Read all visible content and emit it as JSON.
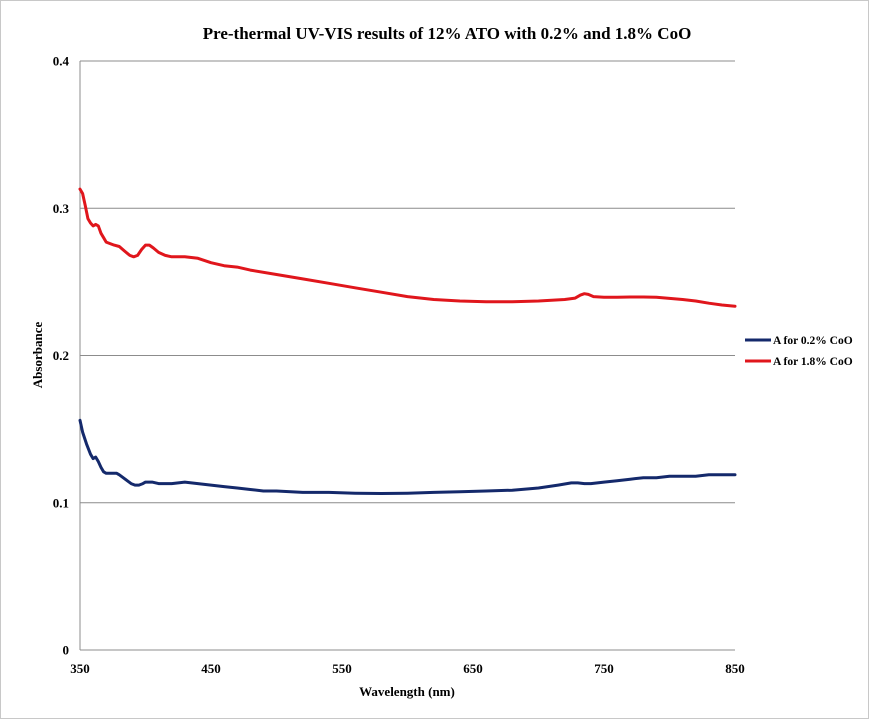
{
  "chart_data": {
    "type": "line",
    "title": "Pre-thermal UV-VIS  results of 12% ATO with 0.2% and 1.8% CoO",
    "xlabel": "Wavelength (nm)",
    "ylabel": "Absorbance",
    "xlim": [
      350,
      850
    ],
    "ylim": [
      0,
      0.4
    ],
    "x_ticks": [
      "350",
      "450",
      "550",
      "650",
      "750",
      "850"
    ],
    "y_ticks": [
      "0",
      "0.1",
      "0.2",
      "0.3",
      "0.4"
    ],
    "grid": "horizontal",
    "legend_position": "right",
    "series": [
      {
        "name": "A for 0.2% CoO",
        "color": "#14296b",
        "x": [
          350,
          352,
          355,
          358,
          360,
          362,
          364,
          366,
          368,
          370,
          372,
          375,
          378,
          380,
          383,
          386,
          389,
          392,
          395,
          398,
          400,
          405,
          410,
          420,
          430,
          440,
          450,
          460,
          470,
          480,
          490,
          500,
          520,
          540,
          560,
          580,
          600,
          620,
          640,
          660,
          680,
          700,
          715,
          725,
          730,
          735,
          740,
          750,
          760,
          770,
          780,
          790,
          800,
          810,
          820,
          830,
          840,
          850
        ],
        "y": [
          0.156,
          0.148,
          0.14,
          0.133,
          0.13,
          0.131,
          0.128,
          0.124,
          0.121,
          0.12,
          0.12,
          0.12,
          0.12,
          0.119,
          0.117,
          0.115,
          0.113,
          0.112,
          0.112,
          0.113,
          0.114,
          0.114,
          0.113,
          0.113,
          0.114,
          0.113,
          0.112,
          0.111,
          0.11,
          0.109,
          0.108,
          0.108,
          0.107,
          0.107,
          0.1065,
          0.1063,
          0.1065,
          0.107,
          0.1075,
          0.108,
          0.1085,
          0.11,
          0.112,
          0.1135,
          0.1135,
          0.113,
          0.113,
          0.114,
          0.115,
          0.116,
          0.117,
          0.117,
          0.118,
          0.118,
          0.118,
          0.119,
          0.119,
          0.119
        ]
      },
      {
        "name": "A for 1.8% CoO",
        "color": "#e0161c",
        "x": [
          350,
          352,
          354,
          356,
          358,
          360,
          362,
          364,
          366,
          368,
          370,
          373,
          376,
          380,
          384,
          388,
          391,
          394,
          397,
          400,
          403,
          406,
          410,
          415,
          420,
          430,
          440,
          450,
          460,
          470,
          480,
          500,
          520,
          540,
          560,
          580,
          600,
          620,
          640,
          660,
          680,
          700,
          720,
          728,
          732,
          735,
          738,
          742,
          750,
          760,
          770,
          780,
          790,
          800,
          810,
          820,
          830,
          840,
          850
        ],
        "y": [
          0.313,
          0.31,
          0.302,
          0.293,
          0.29,
          0.288,
          0.289,
          0.288,
          0.283,
          0.28,
          0.277,
          0.276,
          0.275,
          0.274,
          0.271,
          0.268,
          0.267,
          0.268,
          0.272,
          0.275,
          0.275,
          0.273,
          0.27,
          0.268,
          0.267,
          0.267,
          0.266,
          0.263,
          0.261,
          0.26,
          0.258,
          0.255,
          0.252,
          0.249,
          0.246,
          0.243,
          0.24,
          0.238,
          0.237,
          0.2365,
          0.2365,
          0.237,
          0.238,
          0.239,
          0.241,
          0.242,
          0.2415,
          0.24,
          0.2395,
          0.2395,
          0.2397,
          0.2397,
          0.2395,
          0.2388,
          0.238,
          0.237,
          0.2355,
          0.2343,
          0.2335
        ]
      }
    ]
  }
}
